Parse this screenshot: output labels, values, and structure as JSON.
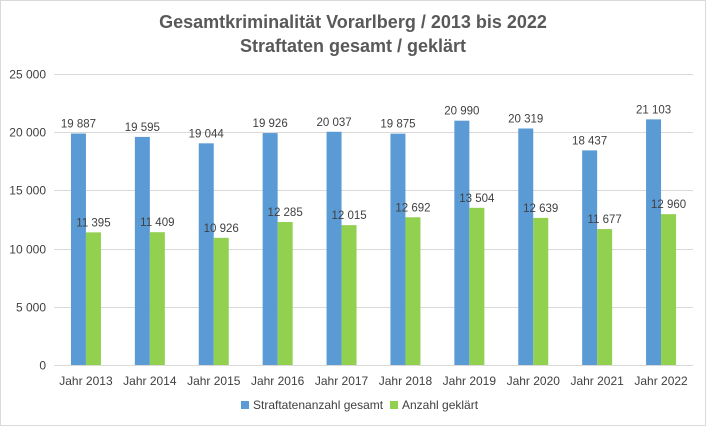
{
  "colors": {
    "series1": "#5b9bd5",
    "series2": "#92d050",
    "grid": "#d9d9d9",
    "text": "#404040",
    "title": "#595959"
  },
  "chart_data": {
    "type": "bar",
    "title": "Gesamtkriminalität Vorarlberg / 2013 bis 2022",
    "subtitle": "Straftaten gesamt / geklärt",
    "categories": [
      "Jahr 2013",
      "Jahr 2014",
      "Jahr 2015",
      "Jahr 2016",
      "Jahr 2017",
      "Jahr 2018",
      "Jahr 2019",
      "Jahr 2020",
      "Jahr 2021",
      "Jahr 2022"
    ],
    "series": [
      {
        "name": "Straftatenanzahl gesamt",
        "values": [
          19887,
          19595,
          19044,
          19926,
          20037,
          19875,
          20990,
          20319,
          18437,
          21103
        ],
        "labels": [
          "19 887",
          "19 595",
          "19 044",
          "19 926",
          "20 037",
          "19 875",
          "20 990",
          "20 319",
          "18 437",
          "21 103"
        ]
      },
      {
        "name": "Anzahl geklärt",
        "values": [
          11395,
          11409,
          10926,
          12285,
          12015,
          12692,
          13504,
          12639,
          11677,
          12960
        ],
        "labels": [
          "11 395",
          "11 409",
          "10 926",
          "12 285",
          "12 015",
          "12 692",
          "13 504",
          "12 639",
          "11 677",
          "12 960"
        ]
      }
    ],
    "yticks": [
      0,
      5000,
      10000,
      15000,
      20000,
      25000
    ],
    "ytick_labels": [
      "0",
      "5 000",
      "10 000",
      "15 000",
      "20 000",
      "25 000"
    ],
    "ylim": [
      0,
      25000
    ],
    "grid": true,
    "legend": "bottom"
  }
}
